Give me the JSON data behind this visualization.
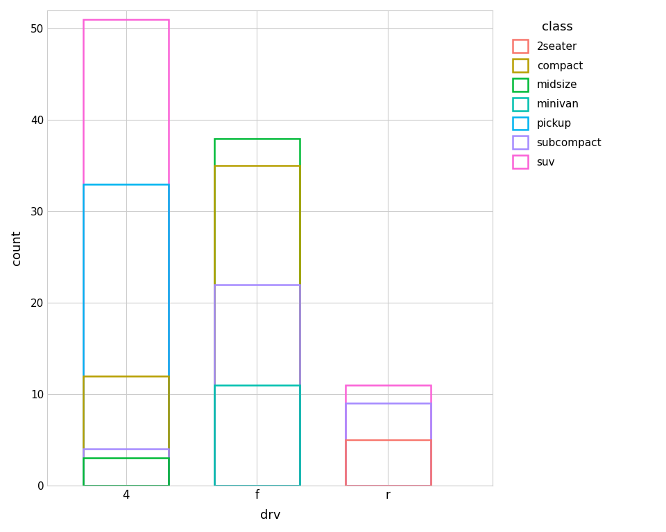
{
  "drv_labels": [
    "4",
    "f",
    "r"
  ],
  "classes": [
    "2seater",
    "compact",
    "midsize",
    "minivan",
    "pickup",
    "subcompact",
    "suv"
  ],
  "colors": {
    "2seater": "#F8766D",
    "compact": "#B79F00",
    "midsize": "#00BA38",
    "minivan": "#00C0AF",
    "pickup": "#00B4F0",
    "subcompact": "#A58AFF",
    "suv": "#FB61D7"
  },
  "counts": {
    "4": {
      "suv": 51,
      "pickup": 33,
      "compact": 12,
      "subcompact": 4,
      "midsize": 3
    },
    "f": {
      "midsize": 38,
      "compact": 35,
      "subcompact": 22,
      "minivan": 11
    },
    "r": {
      "suv": 11,
      "subcompact": 9,
      "2seater": 5
    }
  },
  "xlabel": "drv",
  "ylabel": "count",
  "ylim": [
    0,
    52
  ],
  "yticks": [
    0,
    10,
    20,
    30,
    40,
    50
  ],
  "bar_width": 0.65,
  "bar_centers": [
    1,
    2,
    3
  ],
  "plot_bg_color": "#FFFFFF",
  "fig_bg_color": "#FFFFFF",
  "grid_color": "#CCCCCC",
  "legend_title": "class"
}
